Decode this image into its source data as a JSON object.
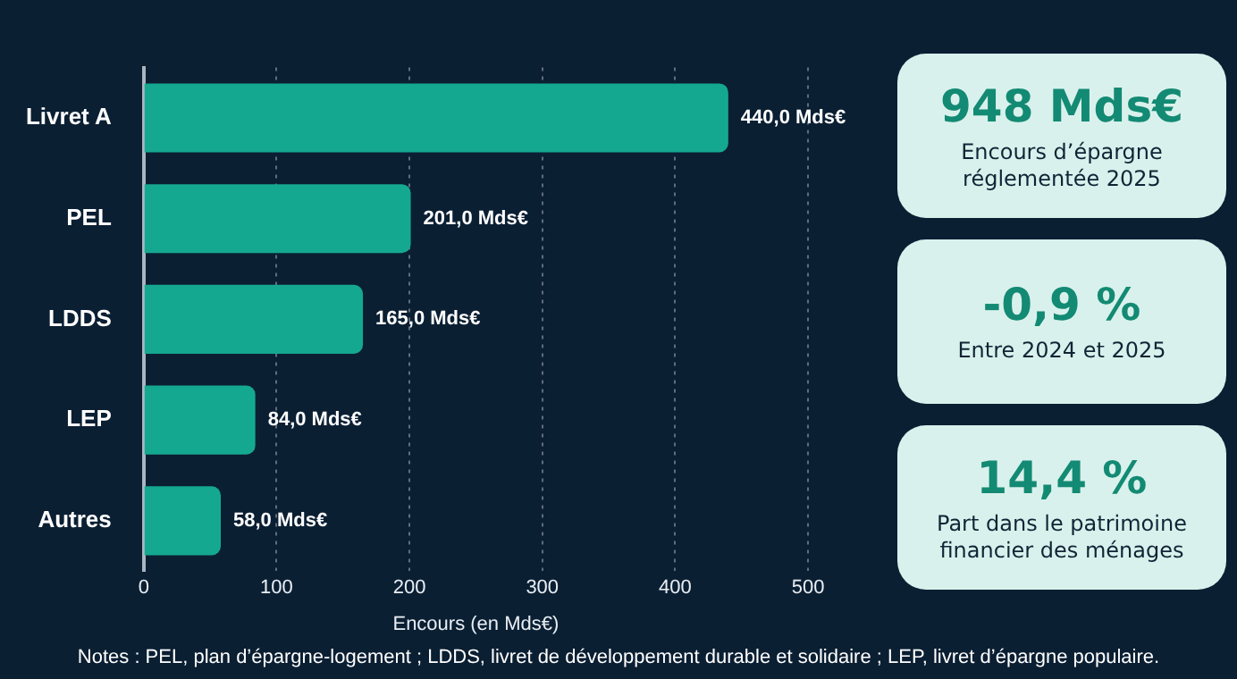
{
  "chart_data": [
    {
      "type": "bar",
      "orientation": "horizontal",
      "categories": [
        "Livret A",
        "PEL",
        "LDDS",
        "LEP",
        "Autres"
      ],
      "values": [
        440,
        201,
        165,
        84,
        58
      ],
      "color": "#15a891",
      "value_labels": [
        "440,0 Mds€",
        "201,0 Mds€",
        "165,0 Mds€",
        "84,0 Mds€",
        "58,0 Mds€"
      ],
      "xlabel": "Encours (en Mds€)",
      "xlim": [
        0,
        500
      ],
      "xticks": [
        0,
        100,
        200,
        300,
        400,
        500
      ],
      "grid": "x",
      "legend": false,
      "annotations": [
        "Notes : PEL, plan d’épargne-logement ; LDDS, livret de développement durable et solidaire ; LEP, livret d’épargne populaire."
      ]
    },
    {
      "type": "other",
      "annotations": [
        "948 Mds€",
        "Encours d’épargne réglementée 2025",
        "-0,9 %",
        "Entre 2024 et 2025",
        "14,4 %",
        "Part dans le patrimoine financier des ménages"
      ]
    }
  ]
}
